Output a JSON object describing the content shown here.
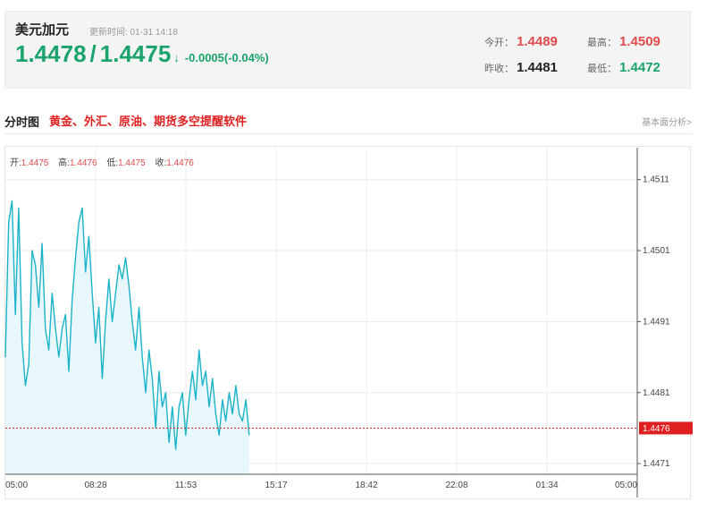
{
  "header": {
    "pair_name": "美元加元",
    "update_label": "更新时间: 01-31 14:18",
    "bid": "1.4478",
    "separator": "/",
    "ask": "1.4475",
    "arrow": "↓",
    "change": "-0.0005(-0.04%)",
    "stats": {
      "open_label": "今开：",
      "open_value": "1.4489",
      "high_label": "最高：",
      "high_value": "1.4509",
      "prev_close_label": "昨收：",
      "prev_close_value": "1.4481",
      "low_label": "最低：",
      "low_value": "1.4472"
    }
  },
  "section": {
    "title": "分时图",
    "promo_link": "黄金、外汇、原油、期货多空提醒软件",
    "fundamental_link": "基本面分析>"
  },
  "ohlc": {
    "open_label": "开:",
    "open_value": "1.4475",
    "high_label": "高:",
    "high_value": "1.4476",
    "low_label": "低:",
    "low_value": "1.4475",
    "close_label": "收:",
    "close_value": "1.4476"
  },
  "colors": {
    "line": "#1cb3c8",
    "area": "#e8f7fb",
    "up": "#e14b4b",
    "down": "#1aa36a",
    "current_tag": "#e02020"
  },
  "chart_data": {
    "type": "area",
    "x_ticks": [
      "05:00",
      "08:28",
      "11:53",
      "15:17",
      "18:42",
      "22:08",
      "01:34",
      "05:00"
    ],
    "y_ticks": [
      1.4511,
      1.4501,
      1.4491,
      1.4481,
      1.4471
    ],
    "current_price": 1.4476,
    "ylim": [
      1.44695,
      1.45155
    ],
    "session_fraction_elapsed": 0.4,
    "series": [
      {
        "values": [
          1.4486,
          1.4505,
          1.4508,
          1.4492,
          1.4507,
          1.4488,
          1.4482,
          1.4485,
          1.4501,
          1.4499,
          1.4493,
          1.4502,
          1.449,
          1.4487,
          1.4495,
          1.449,
          1.4486,
          1.449,
          1.4492,
          1.4484,
          1.4494,
          1.45,
          1.4505,
          1.4507,
          1.4498,
          1.4503,
          1.4495,
          1.4488,
          1.4493,
          1.4483,
          1.4491,
          1.4497,
          1.4491,
          1.4495,
          1.4499,
          1.4497,
          1.45,
          1.4496,
          1.4491,
          1.4487,
          1.4493,
          1.4486,
          1.4481,
          1.4487,
          1.4483,
          1.4476,
          1.4484,
          1.4479,
          1.4481,
          1.4474,
          1.4479,
          1.4473,
          1.4479,
          1.4481,
          1.4475,
          1.448,
          1.4484,
          1.448,
          1.4487,
          1.4482,
          1.4484,
          1.4479,
          1.4483,
          1.4478,
          1.4475,
          1.448,
          1.4477,
          1.4481,
          1.4478,
          1.4482,
          1.4478,
          1.4477,
          1.448,
          1.4475
        ]
      }
    ]
  }
}
